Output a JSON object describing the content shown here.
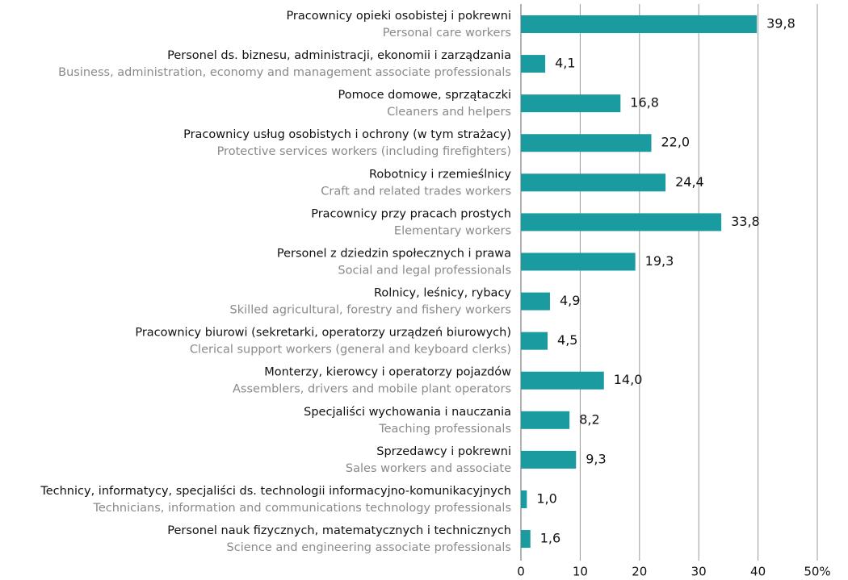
{
  "chart_data": {
    "type": "bar",
    "orientation": "horizontal",
    "categories": [
      "Pracownicy opieki osobistej i pokrewni",
      "Personel ds. biznesu, administracji, ekonomii i zarządzania",
      "Pomoce domowe, sprzątaczki",
      "Pracownicy usług osobistych i ochrony (w tym strażacy)",
      "Robotnicy i rzemieślnicy",
      "Pracownicy przy pracach prostych",
      "Personel z dziedzin społecznych i prawa",
      "Rolnicy, leśnicy, rybacy",
      "Pracownicy biurowi (sekretarki, operatorzy urządzeń biurowych)",
      "Monterzy, kierowcy i operatorzy pojazdów",
      "Specjaliści wychowania i nauczania",
      "Sprzedawcy i pokrewni",
      "Technicy, informatycy, specjaliści ds. technologii informacyjno-komunikacyjnych",
      "Personel nauk fizycznych, matematycznych i technicznych"
    ],
    "categories_en": [
      "Personal care workers",
      "Business, administration, economy and management associate professionals",
      "Cleaners and helpers",
      "Protective services workers (including firefighters)",
      "Craft and related trades workers",
      "Elementary workers",
      "Social and legal professionals",
      "Skilled agricultural, forestry and fishery workers",
      "Clerical support workers (general and keyboard clerks)",
      "Assemblers, drivers and mobile plant operators",
      "Teaching professionals",
      "Sales workers and associate",
      "Technicians, information and communications technology professionals",
      "Science and engineering associate professionals"
    ],
    "values": [
      39.8,
      4.1,
      16.8,
      22.0,
      24.4,
      33.8,
      19.3,
      4.9,
      4.5,
      14.0,
      8.2,
      9.3,
      1.0,
      1.6
    ],
    "value_labels": [
      "39,8",
      "4,1",
      "16,8",
      "22,0",
      "24,4",
      "33,8",
      "19,3",
      "4,9",
      "4,5",
      "14,0",
      "8,2",
      "9,3",
      "1,0",
      "1,6"
    ],
    "color": "#1a9ba0",
    "xlim": [
      0,
      50
    ],
    "xticks": [
      0,
      10,
      20,
      30,
      40,
      {
        "value": 50,
        "label": "50%"
      }
    ],
    "grid": true
  }
}
